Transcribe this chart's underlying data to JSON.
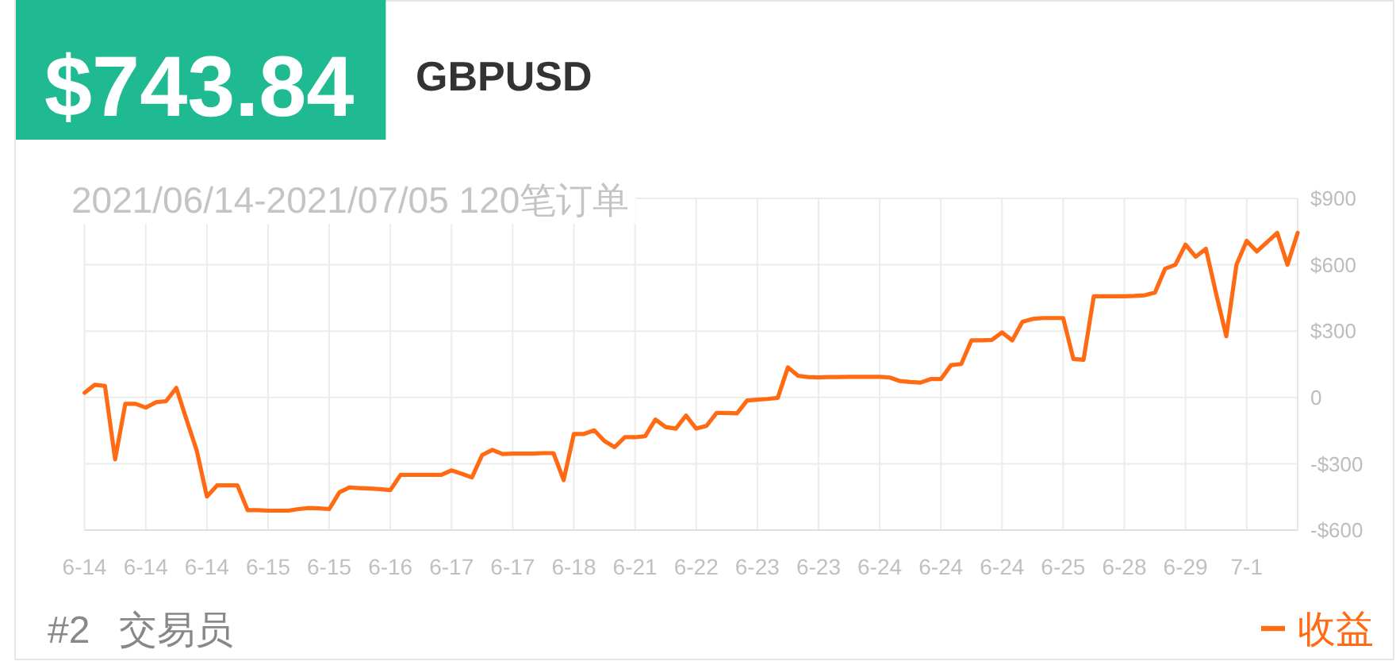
{
  "chart_data": {
    "type": "line",
    "title": "GBPUSD",
    "subtitle": "2021/06/14-2021/07/05 120笔订单",
    "annotations": [
      "$743.84",
      "#2",
      "交易员"
    ],
    "categories": [
      "6-14",
      null,
      null,
      null,
      null,
      null,
      "6-14",
      null,
      null,
      null,
      null,
      null,
      "6-14",
      null,
      null,
      null,
      null,
      null,
      "6-15",
      null,
      null,
      null,
      null,
      null,
      "6-15",
      null,
      null,
      null,
      null,
      null,
      "6-16",
      null,
      null,
      null,
      null,
      null,
      "6-17",
      null,
      null,
      null,
      null,
      null,
      "6-17",
      null,
      null,
      null,
      null,
      null,
      "6-18",
      null,
      null,
      null,
      null,
      null,
      "6-21",
      null,
      null,
      null,
      null,
      null,
      "6-22",
      null,
      null,
      null,
      null,
      null,
      "6-23",
      null,
      null,
      null,
      null,
      null,
      "6-23",
      null,
      null,
      null,
      null,
      null,
      "6-24",
      null,
      null,
      null,
      null,
      null,
      "6-24",
      null,
      null,
      null,
      null,
      null,
      "6-24",
      null,
      null,
      null,
      null,
      null,
      "6-25",
      null,
      null,
      null,
      null,
      null,
      "6-28",
      null,
      null,
      null,
      null,
      null,
      "6-29",
      null,
      null,
      null,
      null,
      null,
      "7-1",
      null,
      null,
      null,
      null,
      null
    ],
    "series": [
      {
        "name": "收益",
        "color": "#ff6a13",
        "values": [
          21,
          57,
          52,
          -280,
          -29,
          -29,
          -46,
          -22,
          -17,
          43,
          -100,
          -240,
          -448,
          -398,
          -398,
          -398,
          -510,
          -510,
          -512,
          -512,
          -512,
          -505,
          -500,
          -502,
          -505,
          -429,
          -407,
          -410,
          -412,
          -415,
          -419,
          -350,
          -350,
          -350,
          -350,
          -350,
          -330,
          -345,
          -362,
          -261,
          -237,
          -256,
          -254,
          -254,
          -254,
          -252,
          -252,
          -374,
          -165,
          -165,
          -149,
          -197,
          -225,
          -180,
          -180,
          -175,
          -100,
          -134,
          -141,
          -82,
          -141,
          -129,
          -70,
          -70,
          -72,
          -14,
          -10,
          -7,
          -2,
          136,
          98,
          92,
          90,
          92,
          92,
          93,
          93,
          93,
          93,
          90,
          74,
          70,
          67,
          83,
          83,
          146,
          151,
          258,
          258,
          260,
          294,
          258,
          342,
          355,
          359,
          359,
          359,
          174,
          170,
          457,
          457,
          457,
          457,
          459,
          462,
          474,
          582,
          600,
          691,
          636,
          672,
          470,
          277,
          600,
          708,
          660,
          702,
          744,
          600,
          743.84
        ]
      }
    ],
    "ylim": [
      -600,
      900
    ],
    "yticks": [
      {
        "value": -600,
        "label": "-$600"
      },
      {
        "value": -300,
        "label": "-$300"
      },
      0,
      {
        "value": 300,
        "label": "$300"
      },
      {
        "value": 600,
        "label": "$600"
      },
      {
        "value": 900,
        "label": "$900"
      }
    ],
    "grid": true,
    "legend": "bottom right"
  }
}
